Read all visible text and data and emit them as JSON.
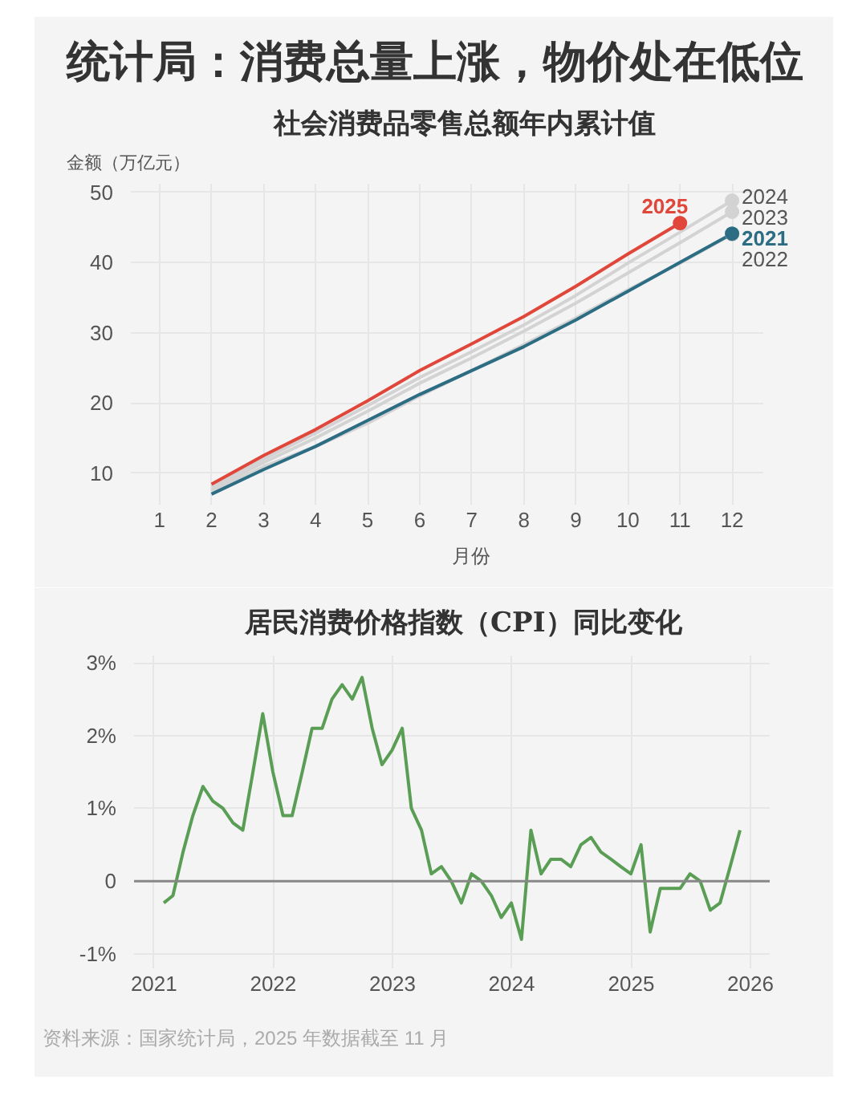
{
  "chart_data": [
    {
      "type": "line",
      "title": "统计局：消费总量上涨，物价处在低位",
      "subtitle": "社会消费品零售总额年内累计值",
      "xlabel": "月份",
      "ylabel": "金额（万亿元）",
      "x": [
        2,
        3,
        4,
        5,
        6,
        7,
        8,
        9,
        10,
        11,
        12
      ],
      "xlim": [
        0.45,
        12.6
      ],
      "xticks": [
        1,
        2,
        3,
        4,
        5,
        6,
        7,
        8,
        9,
        10,
        11,
        12
      ],
      "ylim": [
        5.5,
        51.2
      ],
      "yticks": [
        10,
        20,
        30,
        40,
        50
      ],
      "grid": true,
      "series": [
        {
          "name": "2022",
          "color": "#d3d3d3",
          "values": [
            7.4,
            10.9,
            13.8,
            17.1,
            21.0,
            24.6,
            28.3,
            32.1,
            36.1,
            39.9,
            44.0
          ]
        },
        {
          "name": "2023",
          "color": "#d3d3d3",
          "values": [
            7.7,
            11.5,
            15.0,
            18.8,
            22.8,
            26.4,
            30.2,
            34.2,
            38.5,
            42.8,
            47.2
          ]
        },
        {
          "name": "2024",
          "color": "#d3d3d3",
          "values": [
            8.1,
            12.0,
            15.7,
            19.6,
            23.6,
            27.3,
            31.1,
            35.3,
            39.9,
            44.3,
            48.8
          ]
        },
        {
          "name": "2021",
          "color": "#2c6d84",
          "values": [
            7.0,
            10.5,
            13.8,
            17.5,
            21.2,
            24.6,
            28.0,
            31.8,
            35.9,
            40.0,
            44.1
          ]
        },
        {
          "name": "2025",
          "color": "#e0473a",
          "values": [
            8.4,
            12.5,
            16.2,
            20.3,
            24.6,
            28.4,
            32.3,
            36.6,
            41.2,
            45.6,
            null
          ]
        }
      ]
    },
    {
      "type": "line",
      "title": "居民消费价格指数（CPI）同比变化",
      "x": [
        "2021-01-31",
        "2021-02-28",
        "2021-03-31",
        "2021-04-30",
        "2021-05-31",
        "2021-06-30",
        "2021-07-31",
        "2021-08-31",
        "2021-09-30",
        "2021-10-31",
        "2021-11-30",
        "2021-12-31",
        "2022-01-31",
        "2022-02-28",
        "2022-03-31",
        "2022-04-30",
        "2022-05-31",
        "2022-06-30",
        "2022-07-31",
        "2022-08-31",
        "2022-09-30",
        "2022-10-31",
        "2022-11-30",
        "2022-12-31",
        "2023-01-31",
        "2023-02-28",
        "2023-03-31",
        "2023-04-30",
        "2023-05-31",
        "2023-06-30",
        "2023-07-31",
        "2023-08-31",
        "2023-09-30",
        "2023-10-31",
        "2023-11-30",
        "2023-12-31",
        "2024-01-31",
        "2024-02-29",
        "2024-03-31",
        "2024-04-30",
        "2024-05-31",
        "2024-06-30",
        "2024-07-31",
        "2024-08-31",
        "2024-09-30",
        "2024-10-31",
        "2024-11-30",
        "2024-12-31",
        "2025-01-31",
        "2025-02-28",
        "2025-03-31",
        "2025-04-30",
        "2025-05-31",
        "2025-06-30",
        "2025-07-31",
        "2025-08-31",
        "2025-09-30",
        "2025-10-31",
        "2025-11-30"
      ],
      "values": [
        -0.3,
        -0.2,
        0.4,
        0.9,
        1.3,
        1.1,
        1.0,
        0.8,
        0.7,
        1.5,
        2.3,
        1.5,
        0.9,
        0.9,
        1.5,
        2.1,
        2.1,
        2.5,
        2.7,
        2.5,
        2.8,
        2.1,
        1.6,
        1.8,
        2.1,
        1.0,
        0.7,
        0.1,
        0.2,
        0.0,
        -0.3,
        0.1,
        0.0,
        -0.2,
        -0.5,
        -0.3,
        -0.8,
        0.7,
        0.1,
        0.3,
        0.3,
        0.2,
        0.5,
        0.6,
        0.4,
        0.3,
        0.2,
        0.1,
        0.5,
        -0.7,
        -0.1,
        -0.1,
        -0.1,
        0.1,
        0.0,
        -0.4,
        -0.3,
        0.2,
        0.7
      ],
      "color": "#5a9e55",
      "xlim": [
        "2020-11-01",
        "2026-03-01"
      ],
      "xticks": [
        "2021",
        "2022",
        "2023",
        "2024",
        "2025",
        "2026"
      ],
      "ylim": [
        -1.2,
        3.1
      ],
      "yticks": [
        {
          "value": -1,
          "label": "-1%"
        },
        0,
        {
          "value": 1,
          "label": "1%"
        },
        {
          "value": 2,
          "label": "2%"
        },
        {
          "value": 3,
          "label": "3%"
        }
      ],
      "grid": true,
      "ref_lines": [
        {
          "axis": "y",
          "value": 0,
          "color": "#888888"
        }
      ],
      "annotations": [
        "资料来源：国家统计局，2025 年数据截至 11 月"
      ]
    }
  ]
}
